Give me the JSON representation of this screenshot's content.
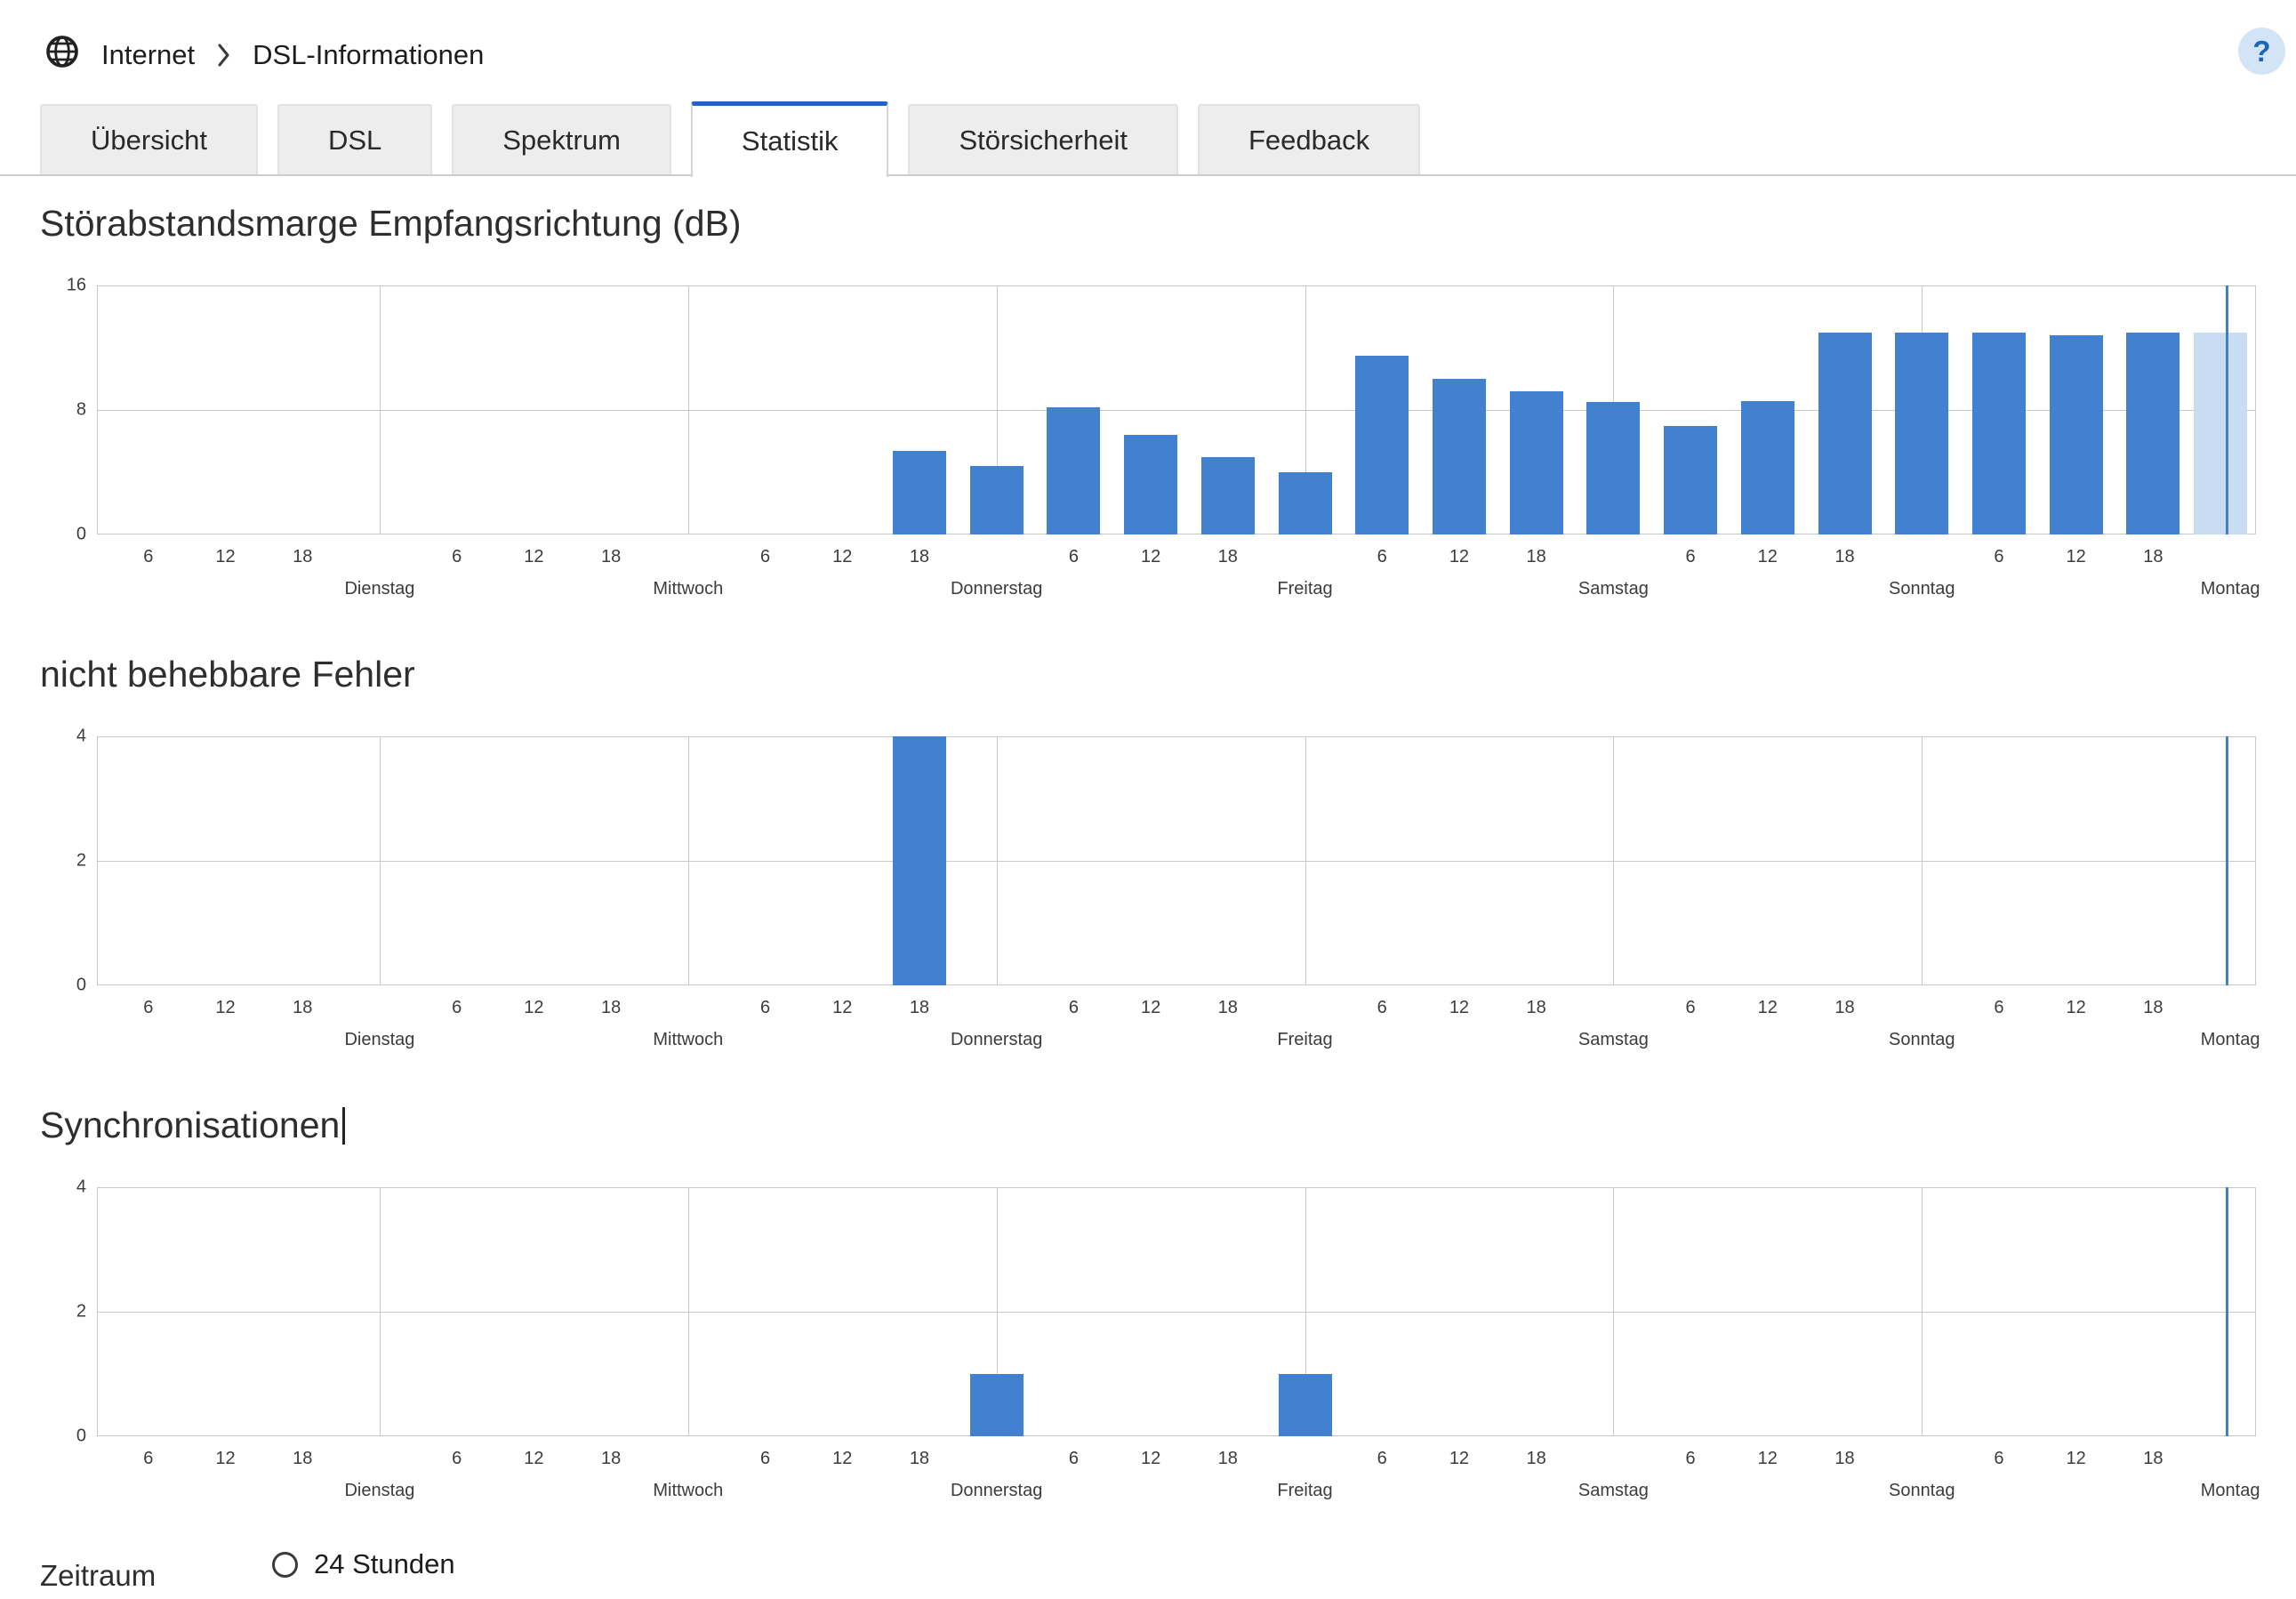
{
  "breadcrumb": {
    "section": "Internet",
    "page": "DSL-Informationen"
  },
  "help_label": "?",
  "icons": {
    "breadcrumb_globe": "globe",
    "breadcrumb_separator": "chevron-right",
    "help": "question-mark-circle",
    "radio": "radio-unchecked"
  },
  "tabs": [
    {
      "label": "Übersicht",
      "active": false
    },
    {
      "label": "DSL",
      "active": false
    },
    {
      "label": "Spektrum",
      "active": false
    },
    {
      "label": "Statistik",
      "active": true
    },
    {
      "label": "Störsicherheit",
      "active": false
    },
    {
      "label": "Feedback",
      "active": false
    }
  ],
  "colors": {
    "accent": "#2065c0",
    "bar": "#4181cf",
    "bar_current": "#c9ddf2",
    "now_line": "#3f7fce",
    "grid": "#c8c8c8",
    "help_bg": "#d2e4f6",
    "help_fg": "#1c66b8"
  },
  "time_axis": {
    "hours_start": 2,
    "hours_end": 170,
    "day_boundaries": [
      24,
      48,
      72,
      96,
      120,
      144
    ],
    "hour_tick_labels": [
      6,
      12,
      18
    ],
    "day_labels": [
      {
        "label": "Dienstag",
        "end_hour": 24
      },
      {
        "label": "Mittwoch",
        "end_hour": 48
      },
      {
        "label": "Donnerstag",
        "end_hour": 72
      },
      {
        "label": "Freitag",
        "end_hour": 96
      },
      {
        "label": "Samstag",
        "end_hour": 120
      },
      {
        "label": "Sonntag",
        "end_hour": 144
      },
      {
        "label": "Montag",
        "end_hour": 168
      }
    ],
    "now_hour": 167.7
  },
  "chart_data": [
    {
      "type": "bar",
      "title": "Störabstandsmarge Empfangsrichtung (dB)",
      "xlabel": "",
      "ylabel": "dB",
      "ylim": [
        0,
        16
      ],
      "yticks": [
        0,
        8,
        16
      ],
      "grid": true,
      "bars": [
        {
          "hour": 66,
          "value": 5.4
        },
        {
          "hour": 72,
          "value": 4.4
        },
        {
          "hour": 78,
          "value": 8.2
        },
        {
          "hour": 84,
          "value": 6.4
        },
        {
          "hour": 90,
          "value": 5.0
        },
        {
          "hour": 96,
          "value": 4.0
        },
        {
          "hour": 102,
          "value": 11.5
        },
        {
          "hour": 108,
          "value": 10.0
        },
        {
          "hour": 114,
          "value": 9.2
        },
        {
          "hour": 120,
          "value": 8.5
        },
        {
          "hour": 126,
          "value": 7.0
        },
        {
          "hour": 132,
          "value": 8.6
        },
        {
          "hour": 138,
          "value": 13.0
        },
        {
          "hour": 144,
          "value": 13.0
        },
        {
          "hour": 150,
          "value": 13.0
        },
        {
          "hour": 156,
          "value": 12.8
        },
        {
          "hour": 162,
          "value": 13.0
        }
      ],
      "current_bar": {
        "hour": 167.2,
        "value": 13.0
      }
    },
    {
      "type": "bar",
      "title": "nicht behebbare Fehler",
      "xlabel": "",
      "ylabel": "",
      "ylim": [
        0,
        4
      ],
      "yticks": [
        0,
        2,
        4
      ],
      "grid": true,
      "bars": [
        {
          "hour": 66,
          "value": 4
        }
      ]
    },
    {
      "type": "bar",
      "title": "Synchronisationen",
      "text_cursor_after_title": true,
      "xlabel": "",
      "ylabel": "",
      "ylim": [
        0,
        4
      ],
      "yticks": [
        0,
        2,
        4
      ],
      "grid": true,
      "bars": [
        {
          "hour": 72,
          "value": 1
        },
        {
          "hour": 96,
          "value": 1
        }
      ]
    }
  ],
  "zeitraum": {
    "label": "Zeitraum",
    "options": [
      {
        "label": "24 Stunden",
        "selected": false
      }
    ]
  }
}
